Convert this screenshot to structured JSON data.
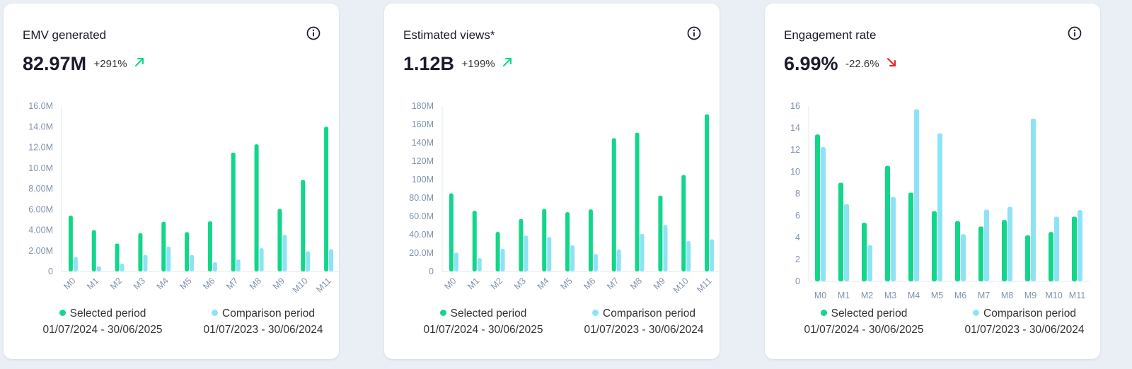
{
  "colors": {
    "selected": "#12d68a",
    "comparison": "#8de3f6",
    "trend_up": "#12d68a",
    "trend_down": "#e42323"
  },
  "icons": {
    "info": "info-icon",
    "trend_up": "arrow-up-right-icon",
    "trend_down": "arrow-down-right-icon"
  },
  "cards": [
    {
      "title": "EMV generated",
      "value": "82.97M",
      "change": "+291%",
      "trend": "up",
      "legend": {
        "selected": {
          "label": "Selected period",
          "dates": "01/07/2024 - 30/06/2025"
        },
        "comparison": {
          "label": "Comparison period",
          "dates": "01/07/2023 - 30/06/2024"
        }
      }
    },
    {
      "title": "Estimated views*",
      "value": "1.12B",
      "change": "+199%",
      "trend": "up",
      "legend": {
        "selected": {
          "label": "Selected period",
          "dates": "01/07/2024 - 30/06/2025"
        },
        "comparison": {
          "label": "Comparison period",
          "dates": "01/07/2023 - 30/06/2024"
        }
      }
    },
    {
      "title": "Engagement rate",
      "value": "6.99%",
      "change": "-22.6%",
      "trend": "down",
      "legend": {
        "selected": {
          "label": "Selected period",
          "dates": "01/07/2024 - 30/06/2025"
        },
        "comparison": {
          "label": "Comparison period",
          "dates": "01/07/2023 - 30/06/2024"
        }
      }
    }
  ],
  "chart_data": [
    {
      "type": "bar",
      "categories": [
        "M0",
        "M1",
        "M2",
        "M3",
        "M4",
        "M5",
        "M6",
        "M7",
        "M8",
        "M9",
        "M10",
        "M11"
      ],
      "series": [
        {
          "name": "Selected period",
          "values": [
            5.4,
            4.0,
            2.7,
            3.7,
            4.8,
            3.8,
            4.85,
            11.5,
            12.3,
            6.05,
            8.85,
            14.0
          ]
        },
        {
          "name": "Comparison period",
          "values": [
            1.4,
            0.5,
            0.75,
            1.6,
            2.4,
            1.6,
            0.9,
            1.15,
            2.25,
            3.55,
            1.95,
            2.15
          ]
        }
      ],
      "yunit": "M",
      "ylim": [
        0,
        16
      ],
      "yticks": [
        "0",
        "2.00M",
        "4.00M",
        "6.00M",
        "8.00M",
        "10.0M",
        "12.0M",
        "14.0M",
        "16.0M"
      ],
      "xlabel_rotated": true,
      "grid": false
    },
    {
      "type": "bar",
      "categories": [
        "M0",
        "M1",
        "M2",
        "M3",
        "M4",
        "M5",
        "M6",
        "M7",
        "M8",
        "M9",
        "M10",
        "M11"
      ],
      "series": [
        {
          "name": "Selected period",
          "values": [
            85,
            66,
            43,
            57,
            68,
            64.5,
            67.5,
            145,
            151,
            82.5,
            105,
            171
          ]
        },
        {
          "name": "Comparison period",
          "values": [
            20.5,
            14.5,
            24.5,
            39,
            37.5,
            28.5,
            19,
            24,
            41,
            50.5,
            33,
            35
          ]
        }
      ],
      "yunit": "M",
      "ylim": [
        0,
        180
      ],
      "yticks": [
        "0",
        "20.0M",
        "40.0M",
        "60.0M",
        "80.0M",
        "100M",
        "120M",
        "140M",
        "160M",
        "180M"
      ],
      "xlabel_rotated": true,
      "grid": false
    },
    {
      "type": "bar",
      "categories": [
        "M0",
        "M1",
        "M2",
        "M3",
        "M4",
        "M5",
        "M6",
        "M7",
        "M8",
        "M9",
        "M10",
        "M11"
      ],
      "series": [
        {
          "name": "Selected period",
          "values": [
            13.4,
            9.0,
            5.35,
            10.55,
            8.1,
            6.4,
            5.5,
            5.0,
            5.6,
            4.2,
            4.5,
            5.9
          ]
        },
        {
          "name": "Comparison period",
          "values": [
            12.25,
            7.05,
            3.3,
            7.7,
            15.7,
            13.5,
            4.3,
            6.55,
            6.8,
            14.85,
            5.9,
            6.5
          ]
        }
      ],
      "ylim": [
        0,
        16
      ],
      "yticks": [
        "0",
        "2",
        "4",
        "6",
        "8",
        "10",
        "12",
        "14",
        "16"
      ],
      "xlabel_rotated": false,
      "grid": false
    }
  ]
}
